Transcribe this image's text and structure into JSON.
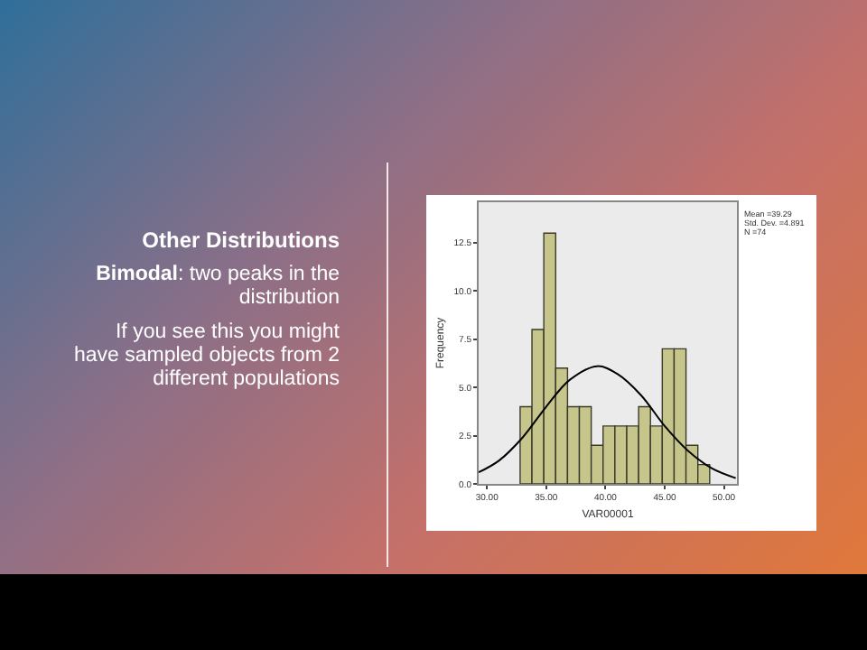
{
  "chart_data": {
    "type": "histogram",
    "title": "Other Distributions",
    "subtitle": "Bimodal: two peaks in the distribution",
    "annotations": [
      "If you see this you might have sampled objects from 2 different populations",
      "Mean =39.29\nStd. Dev. =4.891\nN =74"
    ],
    "xlabel": "VAR00001",
    "ylabel": "Frequency",
    "bins": [
      32.8,
      33.8,
      34.8,
      35.8,
      36.8,
      37.8,
      38.8,
      39.8,
      40.8,
      41.8,
      42.8,
      43.8,
      44.8,
      45.8,
      46.8,
      47.8,
      48.8
    ],
    "values": [
      4,
      8,
      13,
      6,
      4,
      4,
      2,
      3,
      3,
      3,
      4,
      3,
      7,
      7,
      2,
      1
    ],
    "color": "#c6c68c",
    "series": [
      {
        "type": "line",
        "color": "#000000",
        "x": [
          29.3,
          31,
          33,
          35,
          37,
          39.3,
          41,
          43,
          45,
          47,
          49,
          51
        ],
        "values": [
          0.6,
          1.2,
          2.4,
          4.0,
          5.4,
          6.1,
          5.7,
          4.6,
          3.0,
          1.7,
          0.8,
          0.3
        ]
      }
    ],
    "xlim": [
      29.3,
      51.1
    ],
    "xticks": [
      {
        "value": 30,
        "label": "30.00"
      },
      {
        "value": 35,
        "label": "35.00"
      },
      {
        "value": 40,
        "label": "40.00"
      },
      {
        "value": 45,
        "label": "45.00"
      },
      {
        "value": 50,
        "label": "50.00"
      }
    ],
    "ylim": [
      0,
      14.6
    ],
    "yticks": [
      {
        "value": 0,
        "label": "0.0"
      },
      {
        "value": 2.5,
        "label": "2.5"
      },
      {
        "value": 5,
        "label": "5.0"
      },
      {
        "value": 7.5,
        "label": "7.5"
      },
      {
        "value": 10,
        "label": "10.0"
      },
      {
        "value": 12.5,
        "label": "12.5"
      }
    ],
    "grid": false
  }
}
